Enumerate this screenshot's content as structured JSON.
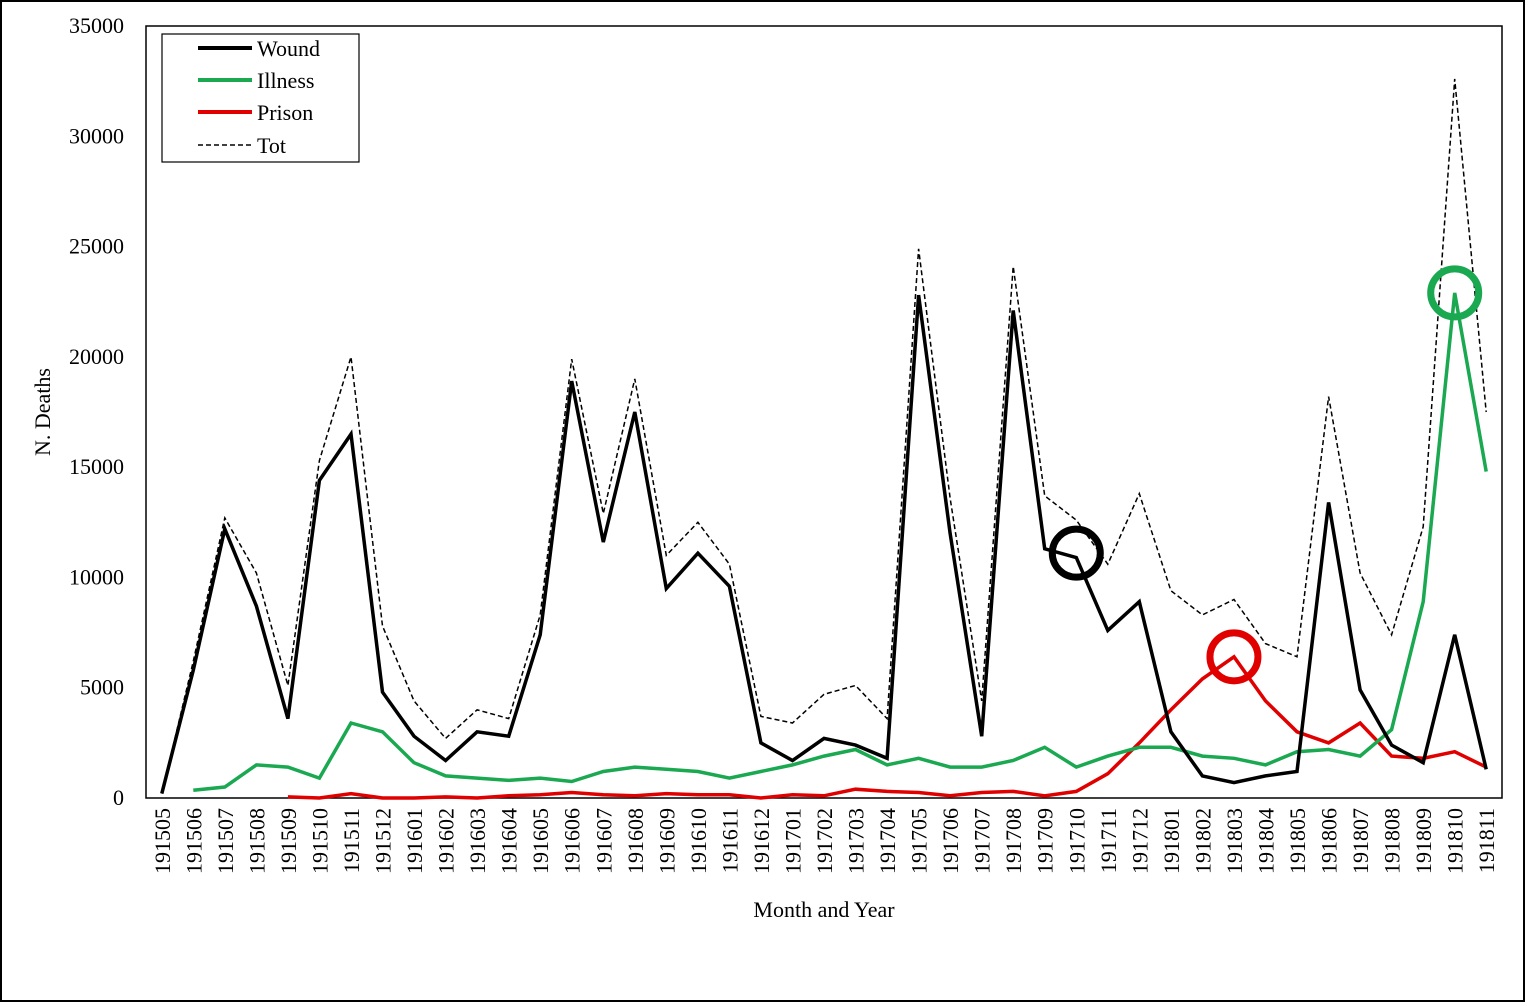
{
  "chart_data": {
    "type": "line",
    "xlabel": "Month and Year",
    "ylabel": "N. Deaths",
    "ylim": [
      0,
      35000
    ],
    "yticks": [
      0,
      5000,
      10000,
      15000,
      20000,
      25000,
      30000,
      35000
    ],
    "legend_position": "top-left",
    "grid": false,
    "categories": [
      "191505",
      "191506",
      "191507",
      "191508",
      "191509",
      "191510",
      "191511",
      "191512",
      "191601",
      "191602",
      "191603",
      "191604",
      "191605",
      "191606",
      "191607",
      "191608",
      "191609",
      "191610",
      "191611",
      "191612",
      "191701",
      "191702",
      "191703",
      "191704",
      "191705",
      "191706",
      "191707",
      "191708",
      "191709",
      "191710",
      "191711",
      "191712",
      "191801",
      "191802",
      "191803",
      "191804",
      "191805",
      "191806",
      "191807",
      "191808",
      "191809",
      "191810",
      "191811"
    ],
    "series": [
      {
        "name": "Wound",
        "color": "#000000",
        "style": "solid",
        "values": [
          200,
          5800,
          12200,
          8700,
          3600,
          14400,
          16500,
          4800,
          2800,
          1700,
          3000,
          2800,
          7400,
          18900,
          11600,
          17500,
          9500,
          11100,
          9600,
          2500,
          1700,
          2700,
          2400,
          1800,
          22800,
          12000,
          2800,
          22100,
          11300,
          10900,
          7600,
          8900,
          3000,
          1000,
          700,
          1000,
          1200,
          13400,
          4900,
          2400,
          1600,
          7400,
          1300
        ]
      },
      {
        "name": "Illness",
        "color": "#1aa851",
        "style": "solid",
        "values": [
          null,
          350,
          500,
          1500,
          1400,
          900,
          3400,
          3000,
          1600,
          1000,
          900,
          800,
          900,
          750,
          1200,
          1400,
          1300,
          1200,
          900,
          1200,
          1500,
          1900,
          2200,
          1500,
          1800,
          1400,
          1400,
          1700,
          2300,
          1400,
          1900,
          2300,
          2300,
          1900,
          1800,
          1500,
          2100,
          2200,
          1900,
          3100,
          8900,
          22900,
          14800
        ]
      },
      {
        "name": "Prison",
        "color": "#e00000",
        "style": "solid",
        "values": [
          null,
          null,
          null,
          null,
          50,
          0,
          200,
          0,
          0,
          50,
          0,
          100,
          150,
          250,
          150,
          100,
          200,
          150,
          150,
          0,
          150,
          100,
          400,
          300,
          250,
          100,
          250,
          300,
          100,
          300,
          1100,
          2500,
          4000,
          5400,
          6400,
          4400,
          3000,
          2500,
          3400,
          1900,
          1800,
          2100,
          1400
        ]
      },
      {
        "name": "Tot",
        "color": "#000000",
        "style": "dashed",
        "values": [
          200,
          6200,
          12700,
          10200,
          5100,
          15300,
          20000,
          7800,
          4400,
          2700,
          4000,
          3600,
          8300,
          19900,
          12900,
          19000,
          11000,
          12500,
          10600,
          3700,
          3400,
          4700,
          5100,
          3600,
          24900,
          13600,
          4400,
          24100,
          13700,
          12600,
          10600,
          13800,
          9400,
          8300,
          9000,
          7000,
          6400,
          18200,
          10200,
          7400,
          12300,
          32600,
          17500
        ]
      }
    ],
    "highlight_circles": [
      {
        "category": "191710",
        "value": 11100,
        "color": "#000000"
      },
      {
        "category": "191803",
        "value": 6400,
        "color": "#e00000"
      },
      {
        "category": "191810",
        "value": 22900,
        "color": "#1aa851"
      }
    ]
  }
}
